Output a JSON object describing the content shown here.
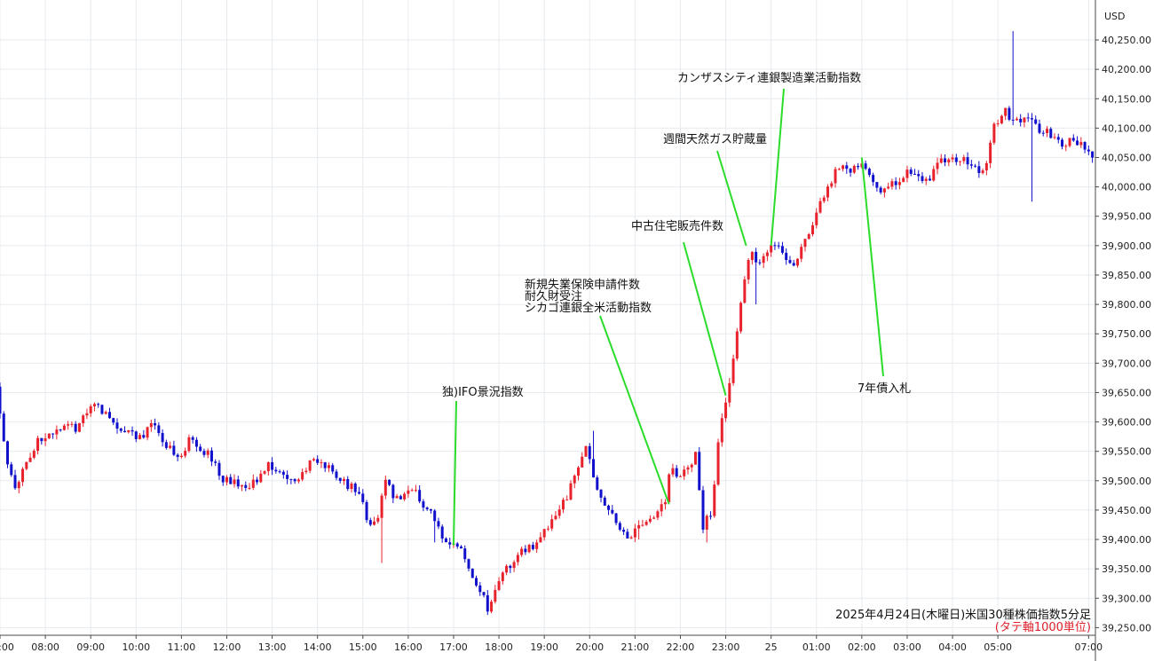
{
  "chart_data": {
    "type": "candlestick",
    "currency_label": "USD",
    "caption": "2025年4月24日(木曜日)米国30種株価指数5分足",
    "caption_note": "(タテ軸1000単位)",
    "y_ticks": [
      "40,250.00",
      "40,200.00",
      "40,150.00",
      "40,100.00",
      "40,050.00",
      "40,000.00",
      "39,950.00",
      "39,900.00",
      "39,850.00",
      "39,800.00",
      "39,750.00",
      "39,700.00",
      "39,650.00",
      "39,600.00",
      "39,550.00",
      "39,500.00",
      "39,450.00",
      "39,400.00",
      "39,350.00",
      "39,300.00",
      "39,250.00"
    ],
    "y_range": [
      39237,
      40318
    ],
    "x_range_hours": [
      7.0,
      31.15
    ],
    "x_ticks": [
      {
        "label": "07:00",
        "h": 7
      },
      {
        "label": "08:00",
        "h": 8
      },
      {
        "label": "09:00",
        "h": 9
      },
      {
        "label": "10:00",
        "h": 10
      },
      {
        "label": "11:00",
        "h": 11
      },
      {
        "label": "12:00",
        "h": 12
      },
      {
        "label": "13:00",
        "h": 13
      },
      {
        "label": "14:00",
        "h": 14
      },
      {
        "label": "15:00",
        "h": 15
      },
      {
        "label": "16:00",
        "h": 16
      },
      {
        "label": "17:00",
        "h": 17
      },
      {
        "label": "18:00",
        "h": 18
      },
      {
        "label": "19:00",
        "h": 19
      },
      {
        "label": "20:00",
        "h": 20
      },
      {
        "label": "21:00",
        "h": 21
      },
      {
        "label": "22:00",
        "h": 22
      },
      {
        "label": "23:00",
        "h": 23
      },
      {
        "label": "25",
        "h": 24
      },
      {
        "label": "01:00",
        "h": 25
      },
      {
        "label": "02:00",
        "h": 26
      },
      {
        "label": "03:00",
        "h": 27
      },
      {
        "label": "04:00",
        "h": 28
      },
      {
        "label": "05:00",
        "h": 29
      },
      {
        "label": "07:00",
        "h": 31
      }
    ],
    "price_path": [
      [
        7.0,
        39660
      ],
      [
        7.25,
        39520
      ],
      [
        7.45,
        39490
      ],
      [
        7.9,
        39570
      ],
      [
        8.4,
        39590
      ],
      [
        8.8,
        39590
      ],
      [
        9.15,
        39630
      ],
      [
        9.6,
        39595
      ],
      [
        10.15,
        39570
      ],
      [
        10.45,
        39600
      ],
      [
        10.8,
        39555
      ],
      [
        11.05,
        39540
      ],
      [
        11.25,
        39570
      ],
      [
        11.7,
        39545
      ],
      [
        12.0,
        39500
      ],
      [
        12.6,
        39490
      ],
      [
        13.0,
        39525
      ],
      [
        13.4,
        39510
      ],
      [
        13.6,
        39495
      ],
      [
        14.0,
        39535
      ],
      [
        14.4,
        39520
      ],
      [
        14.7,
        39495
      ],
      [
        15.0,
        39485
      ],
      [
        15.2,
        39420
      ],
      [
        15.45,
        39440
      ],
      [
        15.55,
        39510
      ],
      [
        15.8,
        39465
      ],
      [
        16.1,
        39490
      ],
      [
        16.35,
        39470
      ],
      [
        16.6,
        39440
      ],
      [
        16.9,
        39400
      ],
      [
        17.2,
        39390
      ],
      [
        17.4,
        39360
      ],
      [
        17.6,
        39320
      ],
      [
        17.75,
        39300
      ],
      [
        17.85,
        39275
      ],
      [
        18.0,
        39310
      ],
      [
        18.25,
        39350
      ],
      [
        18.6,
        39380
      ],
      [
        18.9,
        39395
      ],
      [
        19.25,
        39430
      ],
      [
        19.55,
        39470
      ],
      [
        19.8,
        39510
      ],
      [
        20.0,
        39560
      ],
      [
        20.25,
        39480
      ],
      [
        20.45,
        39460
      ],
      [
        20.65,
        39430
      ],
      [
        20.8,
        39420
      ],
      [
        20.95,
        39405
      ],
      [
        21.2,
        39425
      ],
      [
        21.5,
        39440
      ],
      [
        21.75,
        39470
      ],
      [
        21.85,
        39525
      ],
      [
        22.1,
        39505
      ],
      [
        22.25,
        39525
      ],
      [
        22.45,
        39545
      ],
      [
        22.55,
        39420
      ],
      [
        22.8,
        39450
      ],
      [
        22.9,
        39560
      ],
      [
        23.1,
        39640
      ],
      [
        23.25,
        39700
      ],
      [
        23.45,
        39830
      ],
      [
        23.65,
        39895
      ],
      [
        23.8,
        39870
      ],
      [
        24.0,
        39890
      ],
      [
        24.25,
        39905
      ],
      [
        24.45,
        39865
      ],
      [
        24.7,
        39880
      ],
      [
        24.9,
        39920
      ],
      [
        25.1,
        39965
      ],
      [
        25.35,
        40000
      ],
      [
        25.6,
        40040
      ],
      [
        25.9,
        40030
      ],
      [
        26.05,
        40045
      ],
      [
        26.25,
        40015
      ],
      [
        26.5,
        39985
      ],
      [
        26.8,
        40005
      ],
      [
        27.1,
        40030
      ],
      [
        27.5,
        40010
      ],
      [
        27.85,
        40045
      ],
      [
        28.2,
        40050
      ],
      [
        28.5,
        40040
      ],
      [
        28.75,
        40020
      ],
      [
        29.0,
        40105
      ],
      [
        29.25,
        40130
      ],
      [
        29.45,
        40110
      ],
      [
        29.75,
        40120
      ],
      [
        30.0,
        40095
      ],
      [
        30.25,
        40090
      ],
      [
        30.45,
        40075
      ],
      [
        30.7,
        40080
      ],
      [
        31.0,
        40065
      ],
      [
        31.1,
        40055
      ]
    ],
    "spikes": [
      {
        "h": 15.45,
        "low": 39360
      },
      {
        "h": 16.6,
        "low": 39395
      },
      {
        "h": 20.1,
        "high": 39585
      },
      {
        "h": 21.05,
        "low": 39400
      },
      {
        "h": 22.55,
        "low": 39395
      },
      {
        "h": 23.7,
        "low": 39800
      },
      {
        "h": 29.3,
        "high": 40265
      },
      {
        "h": 29.75,
        "low": 39975
      }
    ],
    "colors": {
      "up": "#e8222d",
      "down": "#1010cc",
      "grid": "#e7ebef",
      "leader": "#2bdc2b",
      "axis": "#4a4a4a"
    },
    "annotations": [
      {
        "lines": [
          "独)IFO景況指数"
        ],
        "h": 17.0,
        "price": 39390
      },
      {
        "lines": [
          "新規失業保険申請件数",
          "耐久財受注",
          "シカゴ連銀全米活動指数"
        ],
        "h": 21.75,
        "price": 39460
      },
      {
        "lines": [
          "中古住宅販売件数"
        ],
        "h": 23.0,
        "price": 39645
      },
      {
        "lines": [
          "週間天然ガス貯蔵量"
        ],
        "h": 23.45,
        "price": 39900
      },
      {
        "lines": [
          "カンザスシティ連銀製造業活動指数"
        ],
        "h": 24.0,
        "price": 39900
      },
      {
        "lines": [
          "7年債入札"
        ],
        "h": 26.0,
        "price": 40050
      }
    ]
  }
}
